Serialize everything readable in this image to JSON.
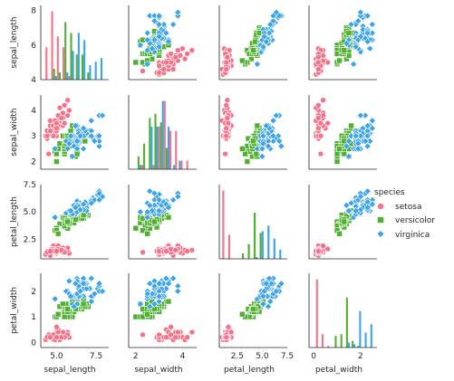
{
  "chart_data": {
    "type": "scatter",
    "chart_kind": "pairplot",
    "variables": [
      "sepal_length",
      "sepal_width",
      "petal_length",
      "petal_width"
    ],
    "axis_limits": {
      "sepal_length": [
        4.0,
        8.3
      ],
      "sepal_width": [
        1.7,
        4.6
      ],
      "petal_length": [
        0.7,
        7.5
      ],
      "petal_width": [
        -0.2,
        2.7
      ]
    },
    "ticks": {
      "sepal_length": [
        5.0,
        7.5
      ],
      "sepal_width": [
        2,
        4
      ],
      "petal_length": [
        2.5,
        5.0,
        7.5
      ],
      "petal_width": [
        0,
        2
      ]
    },
    "y_ticks": {
      "sepal_length": [
        4,
        6,
        8
      ],
      "sepal_width": [
        2,
        3,
        4
      ],
      "petal_length": [
        2.5,
        5.0,
        7.5
      ],
      "petal_width": [
        0,
        1,
        2
      ]
    },
    "tick_labels": {
      "x": {
        "sepal_length": [
          "5.0",
          "7.5"
        ],
        "sepal_width": [
          "2",
          "4"
        ],
        "petal_length": [
          "2.5",
          "5.0",
          "7.5"
        ],
        "petal_width": [
          "0",
          "2"
        ]
      },
      "y": {
        "sepal_length": [
          "4",
          "6",
          "8"
        ],
        "sepal_width": [
          "2",
          "3",
          "4"
        ],
        "petal_length": [
          "2.5",
          "5.0",
          "7.5"
        ],
        "petal_width": [
          "0",
          "1",
          "2"
        ]
      }
    },
    "hue": "species",
    "legend": {
      "title": "species",
      "position": "right",
      "entries": [
        {
          "label": "setosa",
          "marker": "circle",
          "color": "#f77189"
        },
        {
          "label": "versicolor",
          "marker": "square",
          "color": "#50b131"
        },
        {
          "label": "virginica",
          "marker": "diamond",
          "color": "#3ba3ec"
        }
      ]
    },
    "diagonal": "histogram",
    "grid": false,
    "series": [
      {
        "name": "setosa",
        "color": "#f77189",
        "marker": "circle",
        "points": [
          [
            5.1,
            3.5,
            1.4,
            0.2
          ],
          [
            4.9,
            3.0,
            1.4,
            0.2
          ],
          [
            4.7,
            3.2,
            1.3,
            0.2
          ],
          [
            4.6,
            3.1,
            1.5,
            0.2
          ],
          [
            5.0,
            3.6,
            1.4,
            0.2
          ],
          [
            5.4,
            3.9,
            1.7,
            0.4
          ],
          [
            4.6,
            3.4,
            1.4,
            0.3
          ],
          [
            5.0,
            3.4,
            1.5,
            0.2
          ],
          [
            4.4,
            2.9,
            1.4,
            0.2
          ],
          [
            4.9,
            3.1,
            1.5,
            0.1
          ],
          [
            5.4,
            3.7,
            1.5,
            0.2
          ],
          [
            4.8,
            3.4,
            1.6,
            0.2
          ],
          [
            4.8,
            3.0,
            1.4,
            0.1
          ],
          [
            4.3,
            3.0,
            1.1,
            0.1
          ],
          [
            5.8,
            4.0,
            1.2,
            0.2
          ],
          [
            5.7,
            4.4,
            1.5,
            0.4
          ],
          [
            5.4,
            3.9,
            1.3,
            0.4
          ],
          [
            5.1,
            3.5,
            1.4,
            0.3
          ],
          [
            5.7,
            3.8,
            1.7,
            0.3
          ],
          [
            5.1,
            3.8,
            1.5,
            0.3
          ],
          [
            5.4,
            3.4,
            1.7,
            0.2
          ],
          [
            5.1,
            3.7,
            1.5,
            0.4
          ],
          [
            4.6,
            3.6,
            1.0,
            0.2
          ],
          [
            5.1,
            3.3,
            1.7,
            0.5
          ],
          [
            4.8,
            3.4,
            1.9,
            0.2
          ],
          [
            5.0,
            3.0,
            1.6,
            0.2
          ],
          [
            5.0,
            3.4,
            1.6,
            0.4
          ],
          [
            5.2,
            3.5,
            1.5,
            0.2
          ],
          [
            5.2,
            3.4,
            1.4,
            0.2
          ],
          [
            4.7,
            3.2,
            1.6,
            0.2
          ],
          [
            4.8,
            3.1,
            1.6,
            0.2
          ],
          [
            5.4,
            3.4,
            1.5,
            0.4
          ],
          [
            5.2,
            4.1,
            1.5,
            0.1
          ],
          [
            5.5,
            4.2,
            1.4,
            0.2
          ],
          [
            4.9,
            3.1,
            1.5,
            0.2
          ],
          [
            5.0,
            3.2,
            1.2,
            0.2
          ],
          [
            5.5,
            3.5,
            1.3,
            0.2
          ],
          [
            4.9,
            3.6,
            1.4,
            0.1
          ],
          [
            4.4,
            3.0,
            1.3,
            0.2
          ],
          [
            5.1,
            3.4,
            1.5,
            0.2
          ],
          [
            5.0,
            3.5,
            1.3,
            0.3
          ],
          [
            4.5,
            2.3,
            1.3,
            0.3
          ],
          [
            4.4,
            3.2,
            1.3,
            0.2
          ],
          [
            5.0,
            3.5,
            1.6,
            0.6
          ],
          [
            5.1,
            3.8,
            1.9,
            0.4
          ],
          [
            4.8,
            3.0,
            1.4,
            0.3
          ],
          [
            5.1,
            3.8,
            1.6,
            0.2
          ],
          [
            4.6,
            3.2,
            1.4,
            0.2
          ],
          [
            5.3,
            3.7,
            1.5,
            0.2
          ],
          [
            5.0,
            3.3,
            1.4,
            0.2
          ]
        ]
      },
      {
        "name": "versicolor",
        "color": "#50b131",
        "marker": "square",
        "points": [
          [
            7.0,
            3.2,
            4.7,
            1.4
          ],
          [
            6.4,
            3.2,
            4.5,
            1.5
          ],
          [
            6.9,
            3.1,
            4.9,
            1.5
          ],
          [
            5.5,
            2.3,
            4.0,
            1.3
          ],
          [
            6.5,
            2.8,
            4.6,
            1.5
          ],
          [
            5.7,
            2.8,
            4.5,
            1.3
          ],
          [
            6.3,
            3.3,
            4.7,
            1.6
          ],
          [
            4.9,
            2.4,
            3.3,
            1.0
          ],
          [
            6.6,
            2.9,
            4.6,
            1.3
          ],
          [
            5.2,
            2.7,
            3.9,
            1.4
          ],
          [
            5.0,
            2.0,
            3.5,
            1.0
          ],
          [
            5.9,
            3.0,
            4.2,
            1.5
          ],
          [
            6.0,
            2.2,
            4.0,
            1.0
          ],
          [
            6.1,
            2.9,
            4.7,
            1.4
          ],
          [
            5.6,
            2.9,
            3.6,
            1.3
          ],
          [
            6.7,
            3.1,
            4.4,
            1.4
          ],
          [
            5.6,
            3.0,
            4.5,
            1.5
          ],
          [
            5.8,
            2.7,
            4.1,
            1.0
          ],
          [
            6.2,
            2.2,
            4.5,
            1.5
          ],
          [
            5.6,
            2.5,
            3.9,
            1.1
          ],
          [
            5.9,
            3.2,
            4.8,
            1.8
          ],
          [
            6.1,
            2.8,
            4.0,
            1.3
          ],
          [
            6.3,
            2.5,
            4.9,
            1.5
          ],
          [
            6.1,
            2.8,
            4.7,
            1.2
          ],
          [
            6.4,
            2.9,
            4.3,
            1.3
          ],
          [
            6.6,
            3.0,
            4.4,
            1.4
          ],
          [
            6.8,
            2.8,
            4.8,
            1.4
          ],
          [
            6.7,
            3.0,
            5.0,
            1.7
          ],
          [
            6.0,
            2.9,
            4.5,
            1.5
          ],
          [
            5.7,
            2.6,
            3.5,
            1.0
          ],
          [
            5.5,
            2.4,
            3.8,
            1.1
          ],
          [
            5.5,
            2.4,
            3.7,
            1.0
          ],
          [
            5.8,
            2.7,
            3.9,
            1.2
          ],
          [
            6.0,
            2.7,
            5.1,
            1.6
          ],
          [
            5.4,
            3.0,
            4.5,
            1.5
          ],
          [
            6.0,
            3.4,
            4.5,
            1.6
          ],
          [
            6.7,
            3.1,
            4.7,
            1.5
          ],
          [
            6.3,
            2.3,
            4.4,
            1.3
          ],
          [
            5.6,
            3.0,
            4.1,
            1.3
          ],
          [
            5.5,
            2.5,
            4.0,
            1.3
          ],
          [
            5.5,
            2.6,
            4.4,
            1.2
          ],
          [
            6.1,
            3.0,
            4.6,
            1.4
          ],
          [
            5.8,
            2.6,
            4.0,
            1.2
          ],
          [
            5.0,
            2.3,
            3.3,
            1.0
          ],
          [
            5.6,
            2.7,
            4.2,
            1.3
          ],
          [
            5.7,
            3.0,
            4.2,
            1.2
          ],
          [
            5.7,
            2.9,
            4.2,
            1.3
          ],
          [
            6.2,
            2.9,
            4.3,
            1.3
          ],
          [
            5.1,
            2.5,
            3.0,
            1.1
          ],
          [
            5.7,
            2.8,
            4.1,
            1.3
          ]
        ]
      },
      {
        "name": "virginica",
        "color": "#3ba3ec",
        "marker": "diamond",
        "points": [
          [
            6.3,
            3.3,
            6.0,
            2.5
          ],
          [
            5.8,
            2.7,
            5.1,
            1.9
          ],
          [
            7.1,
            3.0,
            5.9,
            2.1
          ],
          [
            6.3,
            2.9,
            5.6,
            1.8
          ],
          [
            6.5,
            3.0,
            5.8,
            2.2
          ],
          [
            7.6,
            3.0,
            6.6,
            2.1
          ],
          [
            4.9,
            2.5,
            4.5,
            1.7
          ],
          [
            7.3,
            2.9,
            6.3,
            1.8
          ],
          [
            6.7,
            2.5,
            5.8,
            1.8
          ],
          [
            7.2,
            3.6,
            6.1,
            2.5
          ],
          [
            6.5,
            3.2,
            5.1,
            2.0
          ],
          [
            6.4,
            2.7,
            5.3,
            1.9
          ],
          [
            6.8,
            3.0,
            5.5,
            2.1
          ],
          [
            5.7,
            2.5,
            5.0,
            2.0
          ],
          [
            5.8,
            2.8,
            5.1,
            2.4
          ],
          [
            6.4,
            3.2,
            5.3,
            2.3
          ],
          [
            6.5,
            3.0,
            5.5,
            1.8
          ],
          [
            7.7,
            3.8,
            6.7,
            2.2
          ],
          [
            7.7,
            2.6,
            6.9,
            2.3
          ],
          [
            6.0,
            2.2,
            5.0,
            1.5
          ],
          [
            6.9,
            3.2,
            5.7,
            2.3
          ],
          [
            5.6,
            2.8,
            4.9,
            2.0
          ],
          [
            7.7,
            2.8,
            6.7,
            2.0
          ],
          [
            6.3,
            2.7,
            4.9,
            1.8
          ],
          [
            6.7,
            3.3,
            5.7,
            2.1
          ],
          [
            7.2,
            3.2,
            6.0,
            1.8
          ],
          [
            6.2,
            2.8,
            4.8,
            1.8
          ],
          [
            6.1,
            3.0,
            4.9,
            1.8
          ],
          [
            6.4,
            2.8,
            5.6,
            2.1
          ],
          [
            7.2,
            3.0,
            5.8,
            1.6
          ],
          [
            7.4,
            2.8,
            6.1,
            1.9
          ],
          [
            7.9,
            3.8,
            6.4,
            2.0
          ],
          [
            6.4,
            2.8,
            5.6,
            2.2
          ],
          [
            6.3,
            2.8,
            5.1,
            1.5
          ],
          [
            6.1,
            2.6,
            5.6,
            1.4
          ],
          [
            7.7,
            3.0,
            6.1,
            2.3
          ],
          [
            6.3,
            3.4,
            5.6,
            2.4
          ],
          [
            6.4,
            3.1,
            5.5,
            1.8
          ],
          [
            6.0,
            3.0,
            4.8,
            1.8
          ],
          [
            6.9,
            3.1,
            5.4,
            2.1
          ],
          [
            6.7,
            3.1,
            5.6,
            2.4
          ],
          [
            6.9,
            3.1,
            5.1,
            2.3
          ],
          [
            5.8,
            2.7,
            5.1,
            1.9
          ],
          [
            6.8,
            3.2,
            5.9,
            2.3
          ],
          [
            6.7,
            3.3,
            5.7,
            2.5
          ],
          [
            6.7,
            3.0,
            5.2,
            2.3
          ],
          [
            6.3,
            2.5,
            5.0,
            1.9
          ],
          [
            6.5,
            3.0,
            5.2,
            2.0
          ],
          [
            6.2,
            3.4,
            5.4,
            2.3
          ],
          [
            5.9,
            3.0,
            5.1,
            1.8
          ]
        ]
      }
    ]
  }
}
